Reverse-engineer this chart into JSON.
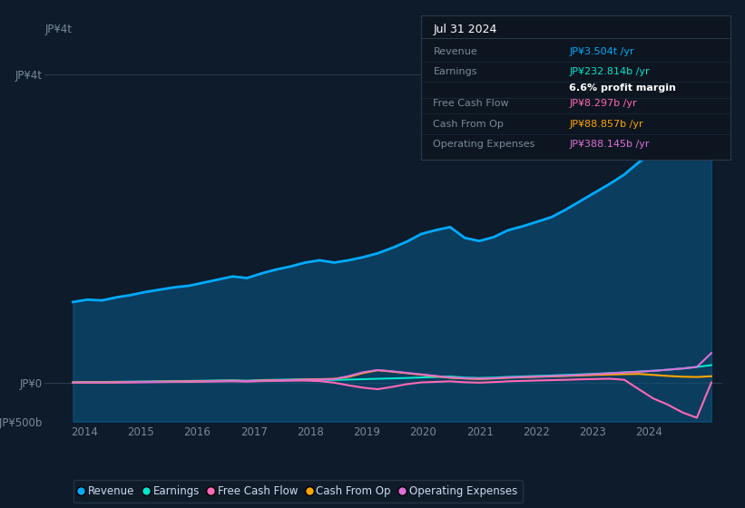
{
  "background_color": "#0d1b2a",
  "plot_bg_color": "#0d1b2a",
  "ylim": [
    -500,
    4500
  ],
  "yticks": [
    -500,
    0,
    4000
  ],
  "ytick_labels": [
    "-JP¥500b",
    "JP¥0",
    "JP¥4t"
  ],
  "xlim": [
    2013.3,
    2025.3
  ],
  "xticks": [
    2014,
    2015,
    2016,
    2017,
    2018,
    2019,
    2020,
    2021,
    2022,
    2023,
    2024
  ],
  "colors": {
    "revenue": "#00aaff",
    "earnings": "#00e5cc",
    "free_cash_flow": "#ff69b4",
    "cash_from_op": "#ffa500",
    "operating_expenses": "#da70d6"
  },
  "legend": [
    {
      "label": "Revenue",
      "color": "#00aaff"
    },
    {
      "label": "Earnings",
      "color": "#00e5cc"
    },
    {
      "label": "Free Cash Flow",
      "color": "#ff69b4"
    },
    {
      "label": "Cash From Op",
      "color": "#ffa500"
    },
    {
      "label": "Operating Expenses",
      "color": "#da70d6"
    }
  ],
  "revenue": [
    1050,
    1080,
    1070,
    1110,
    1140,
    1180,
    1210,
    1240,
    1260,
    1300,
    1340,
    1380,
    1360,
    1420,
    1470,
    1510,
    1560,
    1590,
    1560,
    1590,
    1630,
    1680,
    1750,
    1830,
    1930,
    1980,
    2020,
    1880,
    1840,
    1890,
    1980,
    2030,
    2090,
    2150,
    2250,
    2360,
    2470,
    2580,
    2700,
    2860,
    2980,
    3080,
    3180,
    3290,
    3504
  ],
  "earnings": [
    10,
    14,
    12,
    16,
    18,
    20,
    22,
    25,
    27,
    30,
    33,
    35,
    30,
    38,
    42,
    45,
    48,
    44,
    40,
    45,
    50,
    55,
    60,
    65,
    72,
    78,
    85,
    70,
    65,
    70,
    80,
    85,
    92,
    98,
    105,
    112,
    120,
    128,
    138,
    148,
    158,
    172,
    188,
    208,
    232
  ],
  "free_cash_flow": [
    3,
    5,
    4,
    7,
    8,
    10,
    12,
    14,
    15,
    18,
    20,
    22,
    18,
    25,
    28,
    30,
    32,
    25,
    5,
    -30,
    -60,
    -80,
    -50,
    -15,
    8,
    15,
    22,
    10,
    5,
    12,
    22,
    28,
    33,
    38,
    42,
    48,
    52,
    56,
    42,
    -80,
    -200,
    -280,
    -380,
    -450,
    8
  ],
  "cash_from_op": [
    8,
    10,
    9,
    12,
    14,
    16,
    18,
    20,
    22,
    25,
    28,
    30,
    26,
    32,
    36,
    40,
    45,
    50,
    55,
    80,
    130,
    165,
    148,
    128,
    108,
    88,
    68,
    58,
    52,
    58,
    68,
    74,
    80,
    86,
    92,
    98,
    105,
    110,
    115,
    118,
    105,
    92,
    82,
    78,
    88
  ],
  "operating_expenses": [
    6,
    8,
    7,
    10,
    12,
    14,
    16,
    18,
    20,
    22,
    25,
    28,
    25,
    30,
    34,
    38,
    42,
    46,
    50,
    90,
    140,
    168,
    152,
    132,
    112,
    92,
    72,
    62,
    57,
    62,
    72,
    78,
    84,
    90,
    96,
    106,
    116,
    126,
    136,
    146,
    158,
    172,
    188,
    208,
    388
  ],
  "info_box": {
    "title": "Jul 31 2024",
    "rows": [
      {
        "label": "Revenue",
        "value": "JP¥3.504t /yr",
        "label_color": "#7a8a9a",
        "value_color": "#00aaff"
      },
      {
        "label": "Earnings",
        "value": "JP¥232.814b /yr",
        "label_color": "#7a8a9a",
        "value_color": "#00e5cc"
      },
      {
        "label": "",
        "value": "6.6% profit margin",
        "label_color": "#ffffff",
        "value_color": "#ffffff",
        "bold": true
      },
      {
        "label": "Free Cash Flow",
        "value": "JP¥8.297b /yr",
        "label_color": "#7a8a9a",
        "value_color": "#ff69b4"
      },
      {
        "label": "Cash From Op",
        "value": "JP¥88.857b /yr",
        "label_color": "#7a8a9a",
        "value_color": "#ffa500"
      },
      {
        "label": "Operating Expenses",
        "value": "JP¥388.145b /yr",
        "label_color": "#7a8a9a",
        "value_color": "#da70d6"
      }
    ]
  }
}
